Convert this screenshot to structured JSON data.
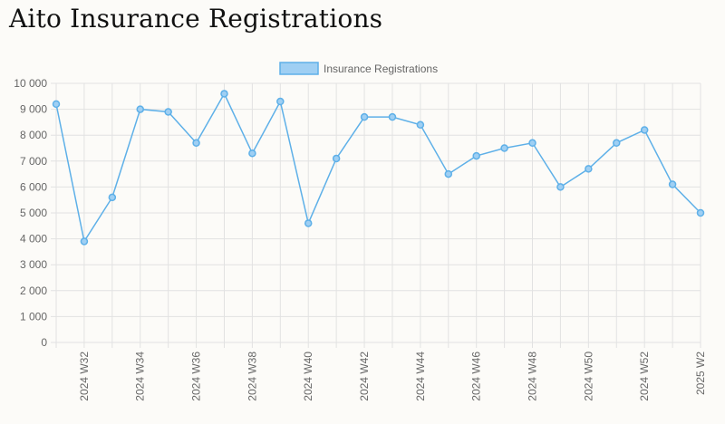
{
  "page": {
    "title": "Aito Insurance Registrations"
  },
  "chart_data": {
    "type": "line",
    "x": [
      "2024 W31",
      "2024 W32",
      "2024 W33",
      "2024 W34",
      "2024 W35",
      "2024 W36",
      "2024 W37",
      "2024 W38",
      "2024 W39",
      "2024 W40",
      "2024 W41",
      "2024 W42",
      "2024 W43",
      "2024 W44",
      "2024 W45",
      "2024 W46",
      "2024 W47",
      "2024 W48",
      "2024 W49",
      "2024 W50",
      "2024 W51",
      "2024 W52",
      "2025 W1",
      "2025 W2"
    ],
    "x_tick_labels": [
      "2024 W32",
      "2024 W34",
      "2024 W36",
      "2024 W38",
      "2024 W40",
      "2024 W42",
      "2024 W44",
      "2024 W46",
      "2024 W48",
      "2024 W50",
      "2024 W52",
      "2025 W2"
    ],
    "series": [
      {
        "name": "Insurance Registrations",
        "values": [
          9200,
          3900,
          5600,
          9000,
          8900,
          7700,
          9600,
          7300,
          9300,
          4600,
          7100,
          8700,
          8700,
          8400,
          6500,
          7200,
          7500,
          7700,
          6000,
          6700,
          7700,
          8200,
          6100,
          5000
        ],
        "color": "#5eb0e8",
        "fill": "#9fcff3"
      }
    ],
    "ylim": [
      0,
      10000
    ],
    "y_ticks": [
      0,
      1000,
      2000,
      3000,
      4000,
      5000,
      6000,
      7000,
      8000,
      9000,
      10000
    ],
    "y_tick_labels": [
      "0",
      "1 000",
      "2 000",
      "3 000",
      "4 000",
      "5 000",
      "6 000",
      "7 000",
      "8 000",
      "9 000",
      "10 000"
    ],
    "grid": true,
    "legend": "top-center"
  }
}
